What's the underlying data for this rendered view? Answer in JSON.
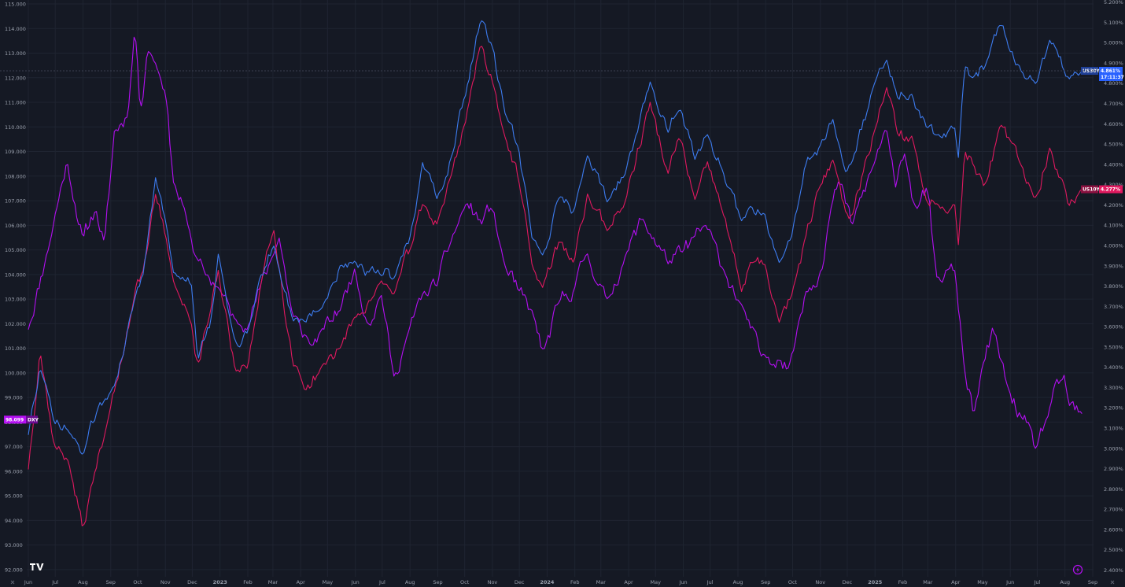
{
  "chart_data": {
    "type": "line",
    "title": "",
    "xlabel": "",
    "ylabel": "",
    "grid": true,
    "colors": {
      "background": "#151924",
      "grid": "#1f2431",
      "tick_text": "#9aa0ad",
      "DXY": "#b40ff2",
      "US10Y": "#e0195f",
      "US30Y": "#3d7cf0",
      "us30y_tag": "#2962ff"
    },
    "x_ticks": [
      "Jun",
      "Jul",
      "Aug",
      "Sep",
      "Oct",
      "Nov",
      "Dec",
      "2023",
      "Feb",
      "Mar",
      "Apr",
      "May",
      "Jun",
      "Jul",
      "Aug",
      "Sep",
      "Oct",
      "Nov",
      "Dec",
      "2024",
      "Feb",
      "Mar",
      "Apr",
      "May",
      "Jun",
      "Jul",
      "Aug",
      "Sep",
      "Oct",
      "Nov",
      "Dec",
      "2025",
      "Feb",
      "Mar",
      "Apr",
      "May",
      "Jun",
      "Jul",
      "Aug",
      "Sep"
    ],
    "left_axis": {
      "ylim": [
        91.71,
        115.16
      ],
      "ticks": [
        "92.000",
        "93.000",
        "94.000",
        "95.000",
        "96.000",
        "97.000",
        "98.000",
        "99.000",
        "100.000",
        "101.000",
        "102.000",
        "103.000",
        "104.000",
        "105.000",
        "106.000",
        "107.000",
        "108.000",
        "109.000",
        "110.000",
        "111.000",
        "112.000",
        "113.000",
        "114.000",
        "115.000"
      ]
    },
    "right_axis": {
      "ylim": [
        2.367,
        5.21
      ],
      "ticks": [
        "2.400%",
        "2.500%",
        "2.600%",
        "2.700%",
        "2.800%",
        "2.900%",
        "3.000%",
        "3.100%",
        "3.200%",
        "3.300%",
        "3.400%",
        "3.500%",
        "3.600%",
        "3.700%",
        "3.800%",
        "3.900%",
        "4.000%",
        "4.100%",
        "4.200%",
        "4.300%",
        "4.400%",
        "4.500%",
        "4.600%",
        "4.700%",
        "4.800%",
        "4.900%",
        "5.000%",
        "5.100%",
        "5.200%"
      ]
    },
    "series": [
      {
        "name": "DXY",
        "axis": "left",
        "last_value": "98.099",
        "keypoints": [
          [
            "2022-06-01",
            101.8
          ],
          [
            "2022-06-20",
            104.6
          ],
          [
            "2022-07-14",
            108.6
          ],
          [
            "2022-08-01",
            105.4
          ],
          [
            "2022-08-15",
            106.7
          ],
          [
            "2022-08-25",
            105.2
          ],
          [
            "2022-09-05",
            109.8
          ],
          [
            "2022-09-20",
            110.5
          ],
          [
            "2022-09-28",
            114.1
          ],
          [
            "2022-10-04",
            110.6
          ],
          [
            "2022-10-12",
            113.2
          ],
          [
            "2022-10-21",
            112.6
          ],
          [
            "2022-11-01",
            111.5
          ],
          [
            "2022-11-10",
            107.8
          ],
          [
            "2022-11-25",
            106.2
          ],
          [
            "2022-12-05",
            104.7
          ],
          [
            "2022-12-15",
            104.0
          ],
          [
            "2022-12-30",
            103.5
          ],
          [
            "2023-01-18",
            102.1
          ],
          [
            "2023-01-31",
            101.9
          ],
          [
            "2023-02-15",
            103.5
          ],
          [
            "2023-03-02",
            104.9
          ],
          [
            "2023-03-08",
            105.5
          ],
          [
            "2023-03-23",
            102.3
          ],
          [
            "2023-04-13",
            101.1
          ],
          [
            "2023-04-25",
            101.7
          ],
          [
            "2023-05-15",
            102.6
          ],
          [
            "2023-05-31",
            104.2
          ],
          [
            "2023-06-15",
            102.0
          ],
          [
            "2023-06-30",
            103.2
          ],
          [
            "2023-07-14",
            99.8
          ],
          [
            "2023-07-31",
            101.7
          ],
          [
            "2023-08-15",
            103.2
          ],
          [
            "2023-08-31",
            103.6
          ],
          [
            "2023-09-15",
            105.3
          ],
          [
            "2023-09-28",
            106.5
          ],
          [
            "2023-10-03",
            106.9
          ],
          [
            "2023-10-20",
            106.1
          ],
          [
            "2023-10-31",
            106.8
          ],
          [
            "2023-11-15",
            104.3
          ],
          [
            "2023-11-30",
            103.3
          ],
          [
            "2023-12-15",
            102.5
          ],
          [
            "2023-12-28",
            100.8
          ],
          [
            "2024-01-15",
            102.9
          ],
          [
            "2024-01-31",
            103.4
          ],
          [
            "2024-02-14",
            104.9
          ],
          [
            "2024-03-08",
            102.9
          ],
          [
            "2024-03-27",
            104.6
          ],
          [
            "2024-04-16",
            106.3
          ],
          [
            "2024-05-15",
            104.5
          ],
          [
            "2024-05-31",
            104.9
          ],
          [
            "2024-06-26",
            106.0
          ],
          [
            "2024-07-15",
            104.3
          ],
          [
            "2024-08-05",
            102.7
          ],
          [
            "2024-08-27",
            100.7
          ],
          [
            "2024-09-17",
            100.6
          ],
          [
            "2024-09-27",
            100.2
          ],
          [
            "2024-10-15",
            103.3
          ],
          [
            "2024-10-31",
            104.0
          ],
          [
            "2024-11-13",
            106.7
          ],
          [
            "2024-11-22",
            107.8
          ],
          [
            "2024-12-06",
            106.0
          ],
          [
            "2024-12-31",
            108.5
          ],
          [
            "2025-01-13",
            110.0
          ],
          [
            "2025-01-24",
            107.5
          ],
          [
            "2025-02-03",
            109.0
          ],
          [
            "2025-02-14",
            106.8
          ],
          [
            "2025-02-28",
            107.5
          ],
          [
            "2025-03-11",
            103.8
          ],
          [
            "2025-03-31",
            104.2
          ],
          [
            "2025-04-11",
            100.1
          ],
          [
            "2025-04-21",
            98.3
          ],
          [
            "2025-05-12",
            101.8
          ],
          [
            "2025-05-30",
            99.3
          ],
          [
            "2025-06-13",
            98.2
          ],
          [
            "2025-06-30",
            96.9
          ],
          [
            "2025-07-16",
            98.7
          ],
          [
            "2025-07-31",
            99.9
          ],
          [
            "2025-08-05",
            98.7
          ],
          [
            "2025-08-20",
            98.3
          ]
        ]
      },
      {
        "name": "US10Y",
        "axis": "right",
        "last_value": "4.277%",
        "keypoints": [
          [
            "2022-06-01",
            2.9
          ],
          [
            "2022-06-14",
            3.49
          ],
          [
            "2022-06-30",
            3.01
          ],
          [
            "2022-07-15",
            2.95
          ],
          [
            "2022-08-01",
            2.6
          ],
          [
            "2022-08-19",
            2.98
          ],
          [
            "2022-08-31",
            3.19
          ],
          [
            "2022-09-15",
            3.46
          ],
          [
            "2022-09-30",
            3.83
          ],
          [
            "2022-10-07",
            3.88
          ],
          [
            "2022-10-21",
            4.24
          ],
          [
            "2022-11-01",
            4.05
          ],
          [
            "2022-11-10",
            3.83
          ],
          [
            "2022-11-30",
            3.61
          ],
          [
            "2022-12-07",
            3.42
          ],
          [
            "2022-12-21",
            3.66
          ],
          [
            "2022-12-30",
            3.87
          ],
          [
            "2023-01-18",
            3.37
          ],
          [
            "2023-02-01",
            3.4
          ],
          [
            "2023-02-15",
            3.81
          ],
          [
            "2023-03-02",
            4.08
          ],
          [
            "2023-03-23",
            3.42
          ],
          [
            "2023-04-06",
            3.29
          ],
          [
            "2023-04-25",
            3.4
          ],
          [
            "2023-05-15",
            3.5
          ],
          [
            "2023-05-31",
            3.64
          ],
          [
            "2023-06-15",
            3.72
          ],
          [
            "2023-06-30",
            3.82
          ],
          [
            "2023-07-14",
            3.76
          ],
          [
            "2023-07-31",
            3.97
          ],
          [
            "2023-08-15",
            4.2
          ],
          [
            "2023-08-31",
            4.11
          ],
          [
            "2023-09-15",
            4.33
          ],
          [
            "2023-09-29",
            4.57
          ],
          [
            "2023-10-19",
            4.99
          ],
          [
            "2023-10-31",
            4.83
          ],
          [
            "2023-11-15",
            4.54
          ],
          [
            "2023-11-30",
            4.33
          ],
          [
            "2023-12-15",
            3.91
          ],
          [
            "2023-12-27",
            3.79
          ],
          [
            "2024-01-15",
            4.03
          ],
          [
            "2024-01-31",
            3.91
          ],
          [
            "2024-02-15",
            4.25
          ],
          [
            "2024-03-08",
            4.08
          ],
          [
            "2024-03-27",
            4.2
          ],
          [
            "2024-04-25",
            4.7
          ],
          [
            "2024-05-15",
            4.35
          ],
          [
            "2024-05-28",
            4.54
          ],
          [
            "2024-06-14",
            4.22
          ],
          [
            "2024-06-28",
            4.4
          ],
          [
            "2024-07-15",
            4.17
          ],
          [
            "2024-08-05",
            3.78
          ],
          [
            "2024-08-15",
            3.92
          ],
          [
            "2024-08-31",
            3.9
          ],
          [
            "2024-09-16",
            3.62
          ],
          [
            "2024-09-30",
            3.75
          ],
          [
            "2024-10-15",
            4.03
          ],
          [
            "2024-10-31",
            4.28
          ],
          [
            "2024-11-15",
            4.43
          ],
          [
            "2024-11-29",
            4.17
          ],
          [
            "2024-12-06",
            4.15
          ],
          [
            "2024-12-31",
            4.57
          ],
          [
            "2025-01-14",
            4.78
          ],
          [
            "2025-01-27",
            4.53
          ],
          [
            "2025-02-11",
            4.54
          ],
          [
            "2025-02-28",
            4.21
          ],
          [
            "2025-03-11",
            4.21
          ],
          [
            "2025-03-31",
            4.2
          ],
          [
            "2025-04-04",
            4.0
          ],
          [
            "2025-04-11",
            4.48
          ],
          [
            "2025-04-21",
            4.4
          ],
          [
            "2025-05-05",
            4.31
          ],
          [
            "2025-05-21",
            4.59
          ],
          [
            "2025-06-13",
            4.4
          ],
          [
            "2025-06-30",
            4.23
          ],
          [
            "2025-07-15",
            4.49
          ],
          [
            "2025-08-05",
            4.2
          ],
          [
            "2025-08-20",
            4.28
          ]
        ]
      },
      {
        "name": "US30Y",
        "axis": "right",
        "last_value": "4.861%",
        "extra_label": "17:11:37",
        "keypoints": [
          [
            "2022-06-01",
            3.07
          ],
          [
            "2022-06-14",
            3.4
          ],
          [
            "2022-06-30",
            3.12
          ],
          [
            "2022-07-15",
            3.09
          ],
          [
            "2022-08-01",
            2.97
          ],
          [
            "2022-08-19",
            3.22
          ],
          [
            "2022-08-31",
            3.28
          ],
          [
            "2022-09-15",
            3.46
          ],
          [
            "2022-09-30",
            3.78
          ],
          [
            "2022-10-07",
            3.86
          ],
          [
            "2022-10-21",
            4.34
          ],
          [
            "2022-11-01",
            4.12
          ],
          [
            "2022-11-10",
            3.87
          ],
          [
            "2022-11-30",
            3.81
          ],
          [
            "2022-12-07",
            3.44
          ],
          [
            "2022-12-21",
            3.6
          ],
          [
            "2022-12-30",
            3.96
          ],
          [
            "2023-01-18",
            3.52
          ],
          [
            "2023-02-01",
            3.57
          ],
          [
            "2023-02-15",
            3.85
          ],
          [
            "2023-03-02",
            4.0
          ],
          [
            "2023-03-23",
            3.63
          ],
          [
            "2023-04-06",
            3.62
          ],
          [
            "2023-04-25",
            3.7
          ],
          [
            "2023-05-15",
            3.9
          ],
          [
            "2023-05-31",
            3.92
          ],
          [
            "2023-06-15",
            3.87
          ],
          [
            "2023-06-30",
            3.85
          ],
          [
            "2023-07-14",
            3.84
          ],
          [
            "2023-07-31",
            4.01
          ],
          [
            "2023-08-15",
            4.4
          ],
          [
            "2023-08-31",
            4.23
          ],
          [
            "2023-09-15",
            4.42
          ],
          [
            "2023-09-29",
            4.7
          ],
          [
            "2023-10-19",
            5.11
          ],
          [
            "2023-10-31",
            5.0
          ],
          [
            "2023-11-15",
            4.65
          ],
          [
            "2023-11-30",
            4.49
          ],
          [
            "2023-12-15",
            4.04
          ],
          [
            "2023-12-27",
            3.95
          ],
          [
            "2024-01-15",
            4.24
          ],
          [
            "2024-01-31",
            4.17
          ],
          [
            "2024-02-15",
            4.45
          ],
          [
            "2024-03-08",
            4.22
          ],
          [
            "2024-03-27",
            4.34
          ],
          [
            "2024-04-25",
            4.8
          ],
          [
            "2024-05-15",
            4.55
          ],
          [
            "2024-05-28",
            4.68
          ],
          [
            "2024-06-14",
            4.43
          ],
          [
            "2024-06-28",
            4.55
          ],
          [
            "2024-07-15",
            4.37
          ],
          [
            "2024-08-05",
            4.12
          ],
          [
            "2024-08-15",
            4.2
          ],
          [
            "2024-08-31",
            4.15
          ],
          [
            "2024-09-16",
            3.91
          ],
          [
            "2024-09-30",
            4.05
          ],
          [
            "2024-10-15",
            4.4
          ],
          [
            "2024-10-31",
            4.48
          ],
          [
            "2024-11-15",
            4.62
          ],
          [
            "2024-11-29",
            4.36
          ],
          [
            "2024-12-06",
            4.4
          ],
          [
            "2024-12-31",
            4.79
          ],
          [
            "2025-01-14",
            4.92
          ],
          [
            "2025-01-27",
            4.71
          ],
          [
            "2025-02-11",
            4.74
          ],
          [
            "2025-02-28",
            4.58
          ],
          [
            "2025-03-11",
            4.54
          ],
          [
            "2025-03-31",
            4.57
          ],
          [
            "2025-04-04",
            4.43
          ],
          [
            "2025-04-11",
            4.88
          ],
          [
            "2025-04-21",
            4.83
          ],
          [
            "2025-05-05",
            4.9
          ],
          [
            "2025-05-21",
            5.09
          ],
          [
            "2025-06-13",
            4.86
          ],
          [
            "2025-06-30",
            4.8
          ],
          [
            "2025-07-15",
            5.01
          ],
          [
            "2025-08-05",
            4.82
          ],
          [
            "2025-08-20",
            4.86
          ]
        ]
      }
    ]
  }
}
